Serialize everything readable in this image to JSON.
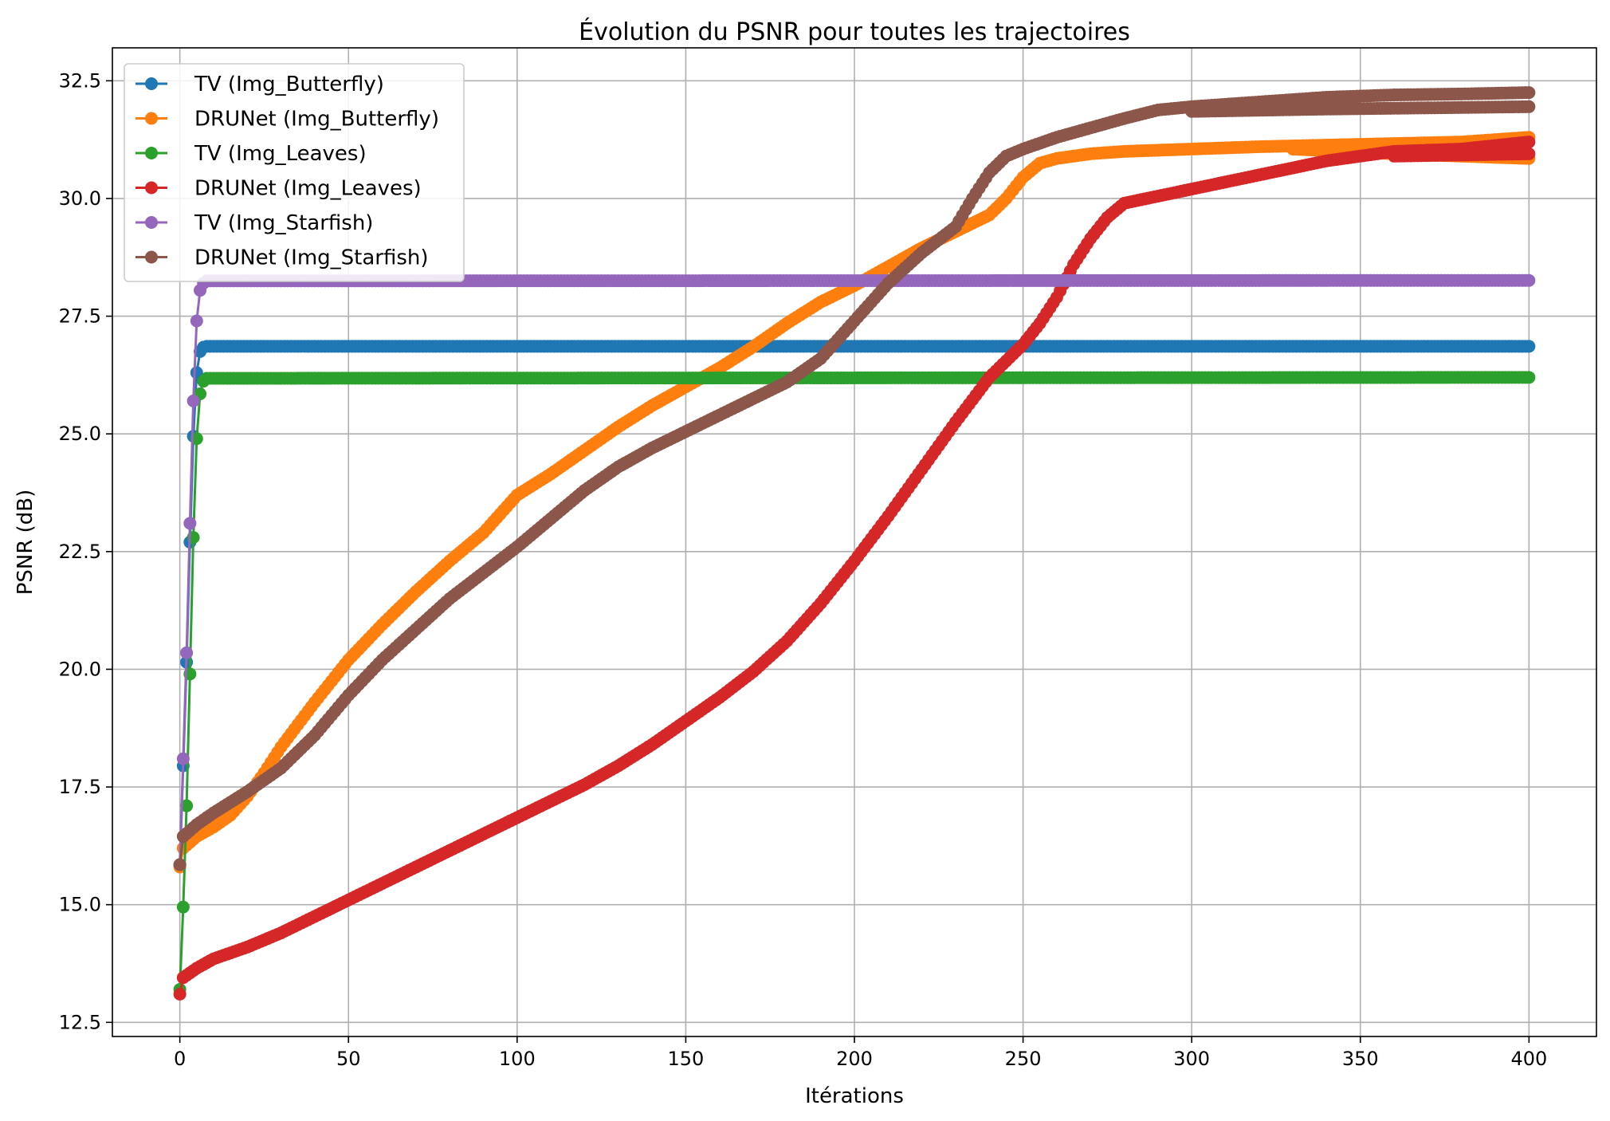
{
  "chart_data": {
    "type": "line",
    "title": "Évolution du PSNR pour toutes les trajectoires",
    "xlabel": "Itérations",
    "ylabel": "PSNR (dB)",
    "xlim": [
      -20,
      420
    ],
    "ylim": [
      12.2,
      33.2
    ],
    "xticks": [
      0,
      50,
      100,
      150,
      200,
      250,
      300,
      350,
      400
    ],
    "yticks": [
      12.5,
      15.0,
      17.5,
      20.0,
      22.5,
      25.0,
      27.5,
      30.0,
      32.5
    ],
    "xtick_labels": [
      "0",
      "50",
      "100",
      "150",
      "200",
      "250",
      "300",
      "350",
      "400"
    ],
    "ytick_labels": [
      "12.5",
      "15.0",
      "17.5",
      "20.0",
      "22.5",
      "25.0",
      "27.5",
      "30.0",
      "32.5"
    ],
    "grid": true,
    "legend_position": "top-left",
    "x_max": 400,
    "series": [
      {
        "name": "TV (Img_Butterfly)",
        "color": "#1f77b4",
        "keypoints": [
          [
            0,
            15.85
          ],
          [
            1,
            17.95
          ],
          [
            2,
            20.15
          ],
          [
            3,
            22.7
          ],
          [
            4,
            24.95
          ],
          [
            5,
            26.3
          ],
          [
            6,
            26.75
          ],
          [
            7,
            26.84
          ],
          [
            8,
            26.86
          ],
          [
            400,
            26.86
          ]
        ]
      },
      {
        "name": "DRUNet (Img_Butterfly)",
        "color": "#ff7f0e",
        "keypoints": [
          [
            0,
            15.8
          ],
          [
            1,
            16.2
          ],
          [
            5,
            16.45
          ],
          [
            10,
            16.65
          ],
          [
            15,
            16.9
          ],
          [
            20,
            17.3
          ],
          [
            25,
            17.8
          ],
          [
            30,
            18.35
          ],
          [
            40,
            19.3
          ],
          [
            50,
            20.2
          ],
          [
            60,
            20.95
          ],
          [
            70,
            21.65
          ],
          [
            80,
            22.3
          ],
          [
            90,
            22.9
          ],
          [
            100,
            23.7
          ],
          [
            110,
            24.15
          ],
          [
            120,
            24.65
          ],
          [
            130,
            25.15
          ],
          [
            140,
            25.6
          ],
          [
            150,
            26.0
          ],
          [
            160,
            26.4
          ],
          [
            170,
            26.85
          ],
          [
            180,
            27.35
          ],
          [
            190,
            27.8
          ],
          [
            200,
            28.15
          ],
          [
            210,
            28.55
          ],
          [
            220,
            28.95
          ],
          [
            230,
            29.3
          ],
          [
            240,
            29.65
          ],
          [
            245,
            30.0
          ],
          [
            250,
            30.45
          ],
          [
            255,
            30.75
          ],
          [
            260,
            30.85
          ],
          [
            270,
            30.95
          ],
          [
            280,
            31.0
          ],
          [
            300,
            31.05
          ],
          [
            320,
            31.1
          ],
          [
            350,
            31.15
          ],
          [
            380,
            31.2
          ],
          [
            400,
            31.3
          ]
        ],
        "lower_band": [
          [
            330,
            31.05
          ],
          [
            360,
            30.95
          ],
          [
            400,
            30.85
          ]
        ]
      },
      {
        "name": "TV (Img_Leaves)",
        "color": "#2ca02c",
        "keypoints": [
          [
            0,
            13.2
          ],
          [
            1,
            14.95
          ],
          [
            2,
            17.1
          ],
          [
            3,
            19.9
          ],
          [
            4,
            22.8
          ],
          [
            5,
            24.9
          ],
          [
            6,
            25.85
          ],
          [
            7,
            26.12
          ],
          [
            8,
            26.18
          ],
          [
            400,
            26.2
          ]
        ]
      },
      {
        "name": "DRUNet (Img_Leaves)",
        "color": "#d62728",
        "keypoints": [
          [
            0,
            13.1
          ],
          [
            1,
            13.45
          ],
          [
            5,
            13.65
          ],
          [
            10,
            13.85
          ],
          [
            20,
            14.1
          ],
          [
            30,
            14.4
          ],
          [
            40,
            14.75
          ],
          [
            50,
            15.1
          ],
          [
            60,
            15.45
          ],
          [
            70,
            15.8
          ],
          [
            80,
            16.15
          ],
          [
            90,
            16.5
          ],
          [
            100,
            16.85
          ],
          [
            110,
            17.2
          ],
          [
            120,
            17.55
          ],
          [
            130,
            17.95
          ],
          [
            140,
            18.4
          ],
          [
            150,
            18.9
          ],
          [
            160,
            19.4
          ],
          [
            170,
            19.95
          ],
          [
            180,
            20.6
          ],
          [
            190,
            21.4
          ],
          [
            200,
            22.3
          ],
          [
            210,
            23.25
          ],
          [
            220,
            24.25
          ],
          [
            230,
            25.25
          ],
          [
            240,
            26.2
          ],
          [
            245,
            26.55
          ],
          [
            250,
            26.9
          ],
          [
            255,
            27.35
          ],
          [
            260,
            27.9
          ],
          [
            265,
            28.6
          ],
          [
            270,
            29.15
          ],
          [
            275,
            29.6
          ],
          [
            280,
            29.9
          ],
          [
            290,
            30.05
          ],
          [
            300,
            30.2
          ],
          [
            310,
            30.35
          ],
          [
            320,
            30.5
          ],
          [
            330,
            30.65
          ],
          [
            340,
            30.8
          ],
          [
            350,
            30.9
          ],
          [
            360,
            31.0
          ],
          [
            380,
            31.05
          ],
          [
            400,
            31.2
          ]
        ],
        "lower_band": [
          [
            360,
            30.9
          ],
          [
            400,
            30.95
          ]
        ]
      },
      {
        "name": "TV (Img_Starfish)",
        "color": "#9467bd",
        "keypoints": [
          [
            0,
            15.85
          ],
          [
            1,
            18.1
          ],
          [
            2,
            20.35
          ],
          [
            3,
            23.1
          ],
          [
            4,
            25.7
          ],
          [
            5,
            27.4
          ],
          [
            6,
            28.05
          ],
          [
            7,
            28.2
          ],
          [
            8,
            28.25
          ],
          [
            400,
            28.26
          ]
        ]
      },
      {
        "name": "DRUNet (Img_Starfish)",
        "color": "#8c564b",
        "keypoints": [
          [
            0,
            15.85
          ],
          [
            1,
            16.45
          ],
          [
            5,
            16.7
          ],
          [
            10,
            16.95
          ],
          [
            20,
            17.4
          ],
          [
            30,
            17.9
          ],
          [
            40,
            18.6
          ],
          [
            50,
            19.45
          ],
          [
            60,
            20.2
          ],
          [
            70,
            20.85
          ],
          [
            80,
            21.5
          ],
          [
            90,
            22.05
          ],
          [
            100,
            22.6
          ],
          [
            110,
            23.2
          ],
          [
            120,
            23.8
          ],
          [
            130,
            24.3
          ],
          [
            140,
            24.7
          ],
          [
            150,
            25.05
          ],
          [
            160,
            25.4
          ],
          [
            170,
            25.75
          ],
          [
            180,
            26.1
          ],
          [
            190,
            26.6
          ],
          [
            200,
            27.4
          ],
          [
            210,
            28.2
          ],
          [
            220,
            28.85
          ],
          [
            230,
            29.4
          ],
          [
            235,
            30.0
          ],
          [
            240,
            30.55
          ],
          [
            245,
            30.9
          ],
          [
            250,
            31.05
          ],
          [
            260,
            31.3
          ],
          [
            270,
            31.5
          ],
          [
            280,
            31.7
          ],
          [
            290,
            31.88
          ],
          [
            300,
            31.95
          ],
          [
            320,
            32.05
          ],
          [
            340,
            32.15
          ],
          [
            360,
            32.2
          ],
          [
            380,
            32.22
          ],
          [
            400,
            32.25
          ]
        ],
        "lower_band": [
          [
            300,
            31.85
          ],
          [
            340,
            31.9
          ],
          [
            400,
            31.95
          ]
        ]
      }
    ]
  }
}
